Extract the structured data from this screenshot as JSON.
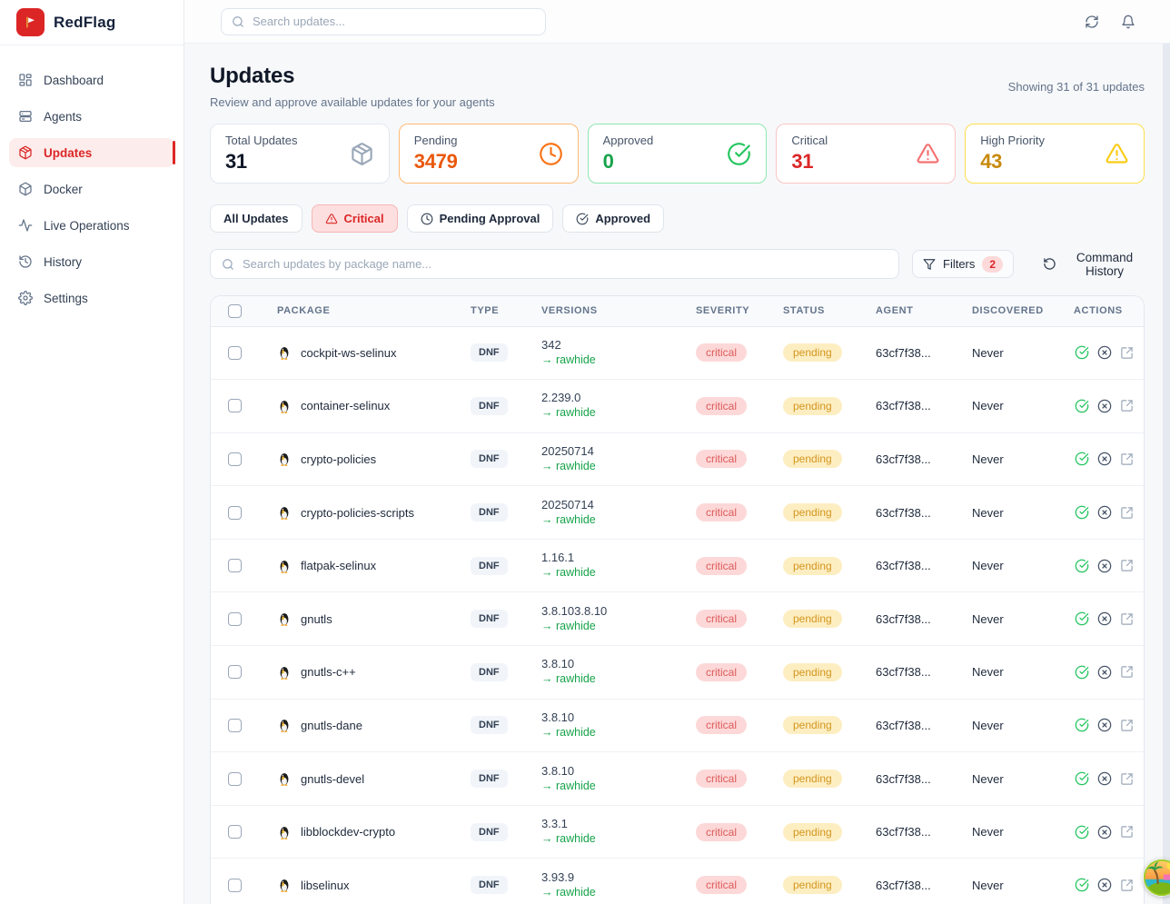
{
  "brand": {
    "name": "RedFlag",
    "logo_color": "#dc2626"
  },
  "topbar": {
    "search_placeholder": "Search updates...",
    "icons": [
      "refresh",
      "bell"
    ]
  },
  "sidebar": {
    "items": [
      {
        "label": "Dashboard",
        "icon": "dashboard",
        "active": false
      },
      {
        "label": "Agents",
        "icon": "agents",
        "active": false
      },
      {
        "label": "Updates",
        "icon": "package",
        "active": true
      },
      {
        "label": "Docker",
        "icon": "box",
        "active": false
      },
      {
        "label": "Live Operations",
        "icon": "activity",
        "active": false
      },
      {
        "label": "History",
        "icon": "history",
        "active": false
      },
      {
        "label": "Settings",
        "icon": "settings",
        "active": false
      }
    ]
  },
  "page": {
    "title": "Updates",
    "subtitle": "Review and approve available updates for your agents",
    "showing": "Showing 31 of 31 updates"
  },
  "stats": [
    {
      "label": "Total Updates",
      "value": "31",
      "icon": "package",
      "border_color": "#e2e8f0",
      "value_color": "#101828",
      "icon_color": "#9aa7b8"
    },
    {
      "label": "Pending",
      "value": "3479",
      "icon": "clock",
      "border_color": "#fdba74",
      "value_color": "#ea580c",
      "icon_color": "#f97316"
    },
    {
      "label": "Approved",
      "value": "0",
      "icon": "circle-check",
      "border_color": "#8ce8b0",
      "value_color": "#16a34a",
      "icon_color": "#22c55e"
    },
    {
      "label": "Critical",
      "value": "31",
      "icon": "triangle-alert",
      "border_color": "#fbc5c5",
      "value_color": "#dc2626",
      "icon_color": "#f47272"
    },
    {
      "label": "High Priority",
      "value": "43",
      "icon": "triangle-alert",
      "border_color": "#fcdf4c",
      "value_color": "#c8890a",
      "icon_color": "#facc15"
    }
  ],
  "filter_tabs": [
    {
      "label": "All Updates",
      "icon": null,
      "active": false
    },
    {
      "label": "Critical",
      "icon": "triangle-alert",
      "active": true
    },
    {
      "label": "Pending Approval",
      "icon": "clock",
      "active": false
    },
    {
      "label": "Approved",
      "icon": "circle-check",
      "active": false
    }
  ],
  "toolbar": {
    "search_placeholder": "Search updates by package name...",
    "filters_label": "Filters",
    "filters_count": "2",
    "command_history_label": "Command History"
  },
  "table": {
    "columns": [
      "PACKAGE",
      "TYPE",
      "VERSIONS",
      "SEVERITY",
      "STATUS",
      "AGENT",
      "DISCOVERED",
      "ACTIONS"
    ],
    "arrow": "→",
    "row_icon": "penguin",
    "action_icons": [
      "approve",
      "reject",
      "open-external"
    ],
    "rows": [
      {
        "package": "cockpit-ws-selinux",
        "type": "DNF",
        "version": "342",
        "target": "rawhide",
        "severity": "critical",
        "status": "pending",
        "agent": "63cf7f38...",
        "discovered": "Never"
      },
      {
        "package": "container-selinux",
        "type": "DNF",
        "version": "2.239.0",
        "target": "rawhide",
        "severity": "critical",
        "status": "pending",
        "agent": "63cf7f38...",
        "discovered": "Never"
      },
      {
        "package": "crypto-policies",
        "type": "DNF",
        "version": "20250714",
        "target": "rawhide",
        "severity": "critical",
        "status": "pending",
        "agent": "63cf7f38...",
        "discovered": "Never"
      },
      {
        "package": "crypto-policies-scripts",
        "type": "DNF",
        "version": "20250714",
        "target": "rawhide",
        "severity": "critical",
        "status": "pending",
        "agent": "63cf7f38...",
        "discovered": "Never"
      },
      {
        "package": "flatpak-selinux",
        "type": "DNF",
        "version": "1.16.1",
        "target": "rawhide",
        "severity": "critical",
        "status": "pending",
        "agent": "63cf7f38...",
        "discovered": "Never"
      },
      {
        "package": "gnutls",
        "type": "DNF",
        "version": "3.8.103.8.10",
        "target": "rawhide",
        "severity": "critical",
        "status": "pending",
        "agent": "63cf7f38...",
        "discovered": "Never"
      },
      {
        "package": "gnutls-c++",
        "type": "DNF",
        "version": "3.8.10",
        "target": "rawhide",
        "severity": "critical",
        "status": "pending",
        "agent": "63cf7f38...",
        "discovered": "Never"
      },
      {
        "package": "gnutls-dane",
        "type": "DNF",
        "version": "3.8.10",
        "target": "rawhide",
        "severity": "critical",
        "status": "pending",
        "agent": "63cf7f38...",
        "discovered": "Never"
      },
      {
        "package": "gnutls-devel",
        "type": "DNF",
        "version": "3.8.10",
        "target": "rawhide",
        "severity": "critical",
        "status": "pending",
        "agent": "63cf7f38...",
        "discovered": "Never"
      },
      {
        "package": "libblockdev-crypto",
        "type": "DNF",
        "version": "3.3.1",
        "target": "rawhide",
        "severity": "critical",
        "status": "pending",
        "agent": "63cf7f38...",
        "discovered": "Never"
      },
      {
        "package": "libselinux",
        "type": "DNF",
        "version": "3.93.9",
        "target": "rawhide",
        "severity": "critical",
        "status": "pending",
        "agent": "63cf7f38...",
        "discovered": "Never"
      }
    ]
  }
}
